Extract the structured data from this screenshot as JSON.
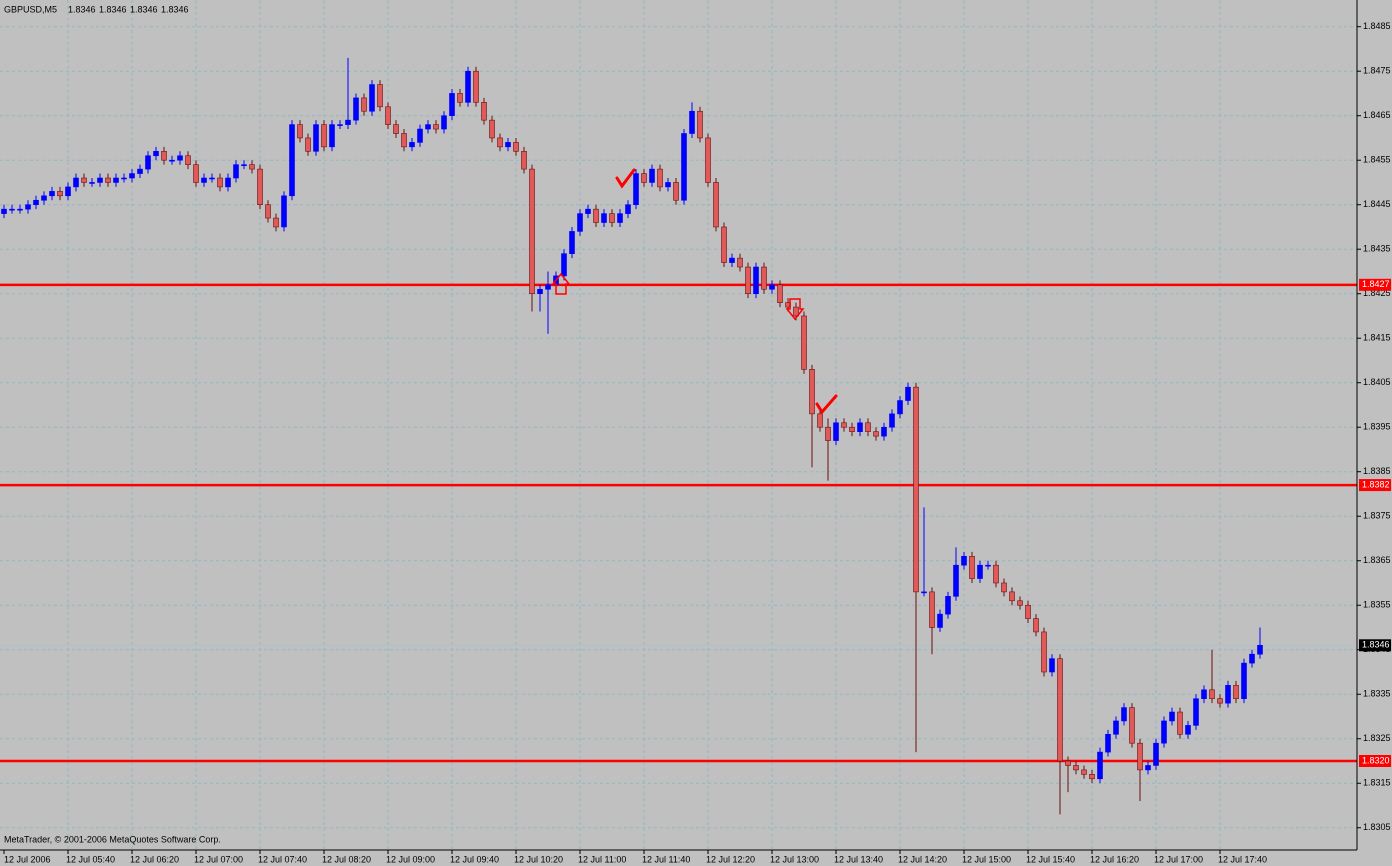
{
  "chart_data": {
    "type": "candlestick",
    "title": "GBPUSD,M5",
    "current_ohlc": [
      1.8346,
      1.8346,
      1.8346,
      1.8346
    ],
    "footer": "MetaTrader, © 2001-2006 MetaQuotes Software Corp.",
    "categories": [
      "12 Jul 2006",
      null,
      null,
      null,
      null,
      null,
      null,
      null,
      "12 Jul 05:40",
      null,
      null,
      null,
      null,
      null,
      null,
      null,
      "12 Jul 06:20",
      null,
      null,
      null,
      null,
      null,
      null,
      null,
      "12 Jul 07:00",
      null,
      null,
      null,
      null,
      null,
      null,
      null,
      "12 Jul 07:40",
      null,
      null,
      null,
      null,
      null,
      null,
      null,
      "12 Jul 08:20",
      null,
      null,
      null,
      null,
      null,
      null,
      null,
      "12 Jul 09:00",
      null,
      null,
      null,
      null,
      null,
      null,
      null,
      "12 Jul 09:40",
      null,
      null,
      null,
      null,
      null,
      null,
      null,
      "12 Jul 10:20",
      null,
      null,
      null,
      null,
      null,
      null,
      null,
      "12 Jul 11:00",
      null,
      null,
      null,
      null,
      null,
      null,
      null,
      "12 Jul 11:40",
      null,
      null,
      null,
      null,
      null,
      null,
      null,
      "12 Jul 12:20",
      null,
      null,
      null,
      null,
      null,
      null,
      null,
      "12 Jul 13:00",
      null,
      null,
      null,
      null,
      null,
      null,
      null,
      "12 Jul 13:40",
      null,
      null,
      null,
      null,
      null,
      null,
      null,
      "12 Jul 14:20",
      null,
      null,
      null,
      null,
      null,
      null,
      null,
      "12 Jul 15:00",
      null,
      null,
      null,
      null,
      null,
      null,
      null,
      "12 Jul 15:40",
      null,
      null,
      null,
      null,
      null,
      null,
      null,
      "12 Jul 16:20",
      null,
      null,
      null,
      null,
      null,
      null,
      null,
      "12 Jul 17:00",
      null,
      null,
      null,
      null,
      null,
      null,
      null,
      "12 Jul 17:40",
      null,
      null,
      null,
      null,
      null
    ],
    "open": [
      1.8443,
      1.8444,
      1.8444,
      1.8444,
      1.8445,
      1.8446,
      1.8447,
      1.8448,
      1.8447,
      1.8449,
      1.8451,
      1.845,
      1.845,
      1.8451,
      1.845,
      1.8451,
      1.8451,
      1.8452,
      1.8453,
      1.8456,
      1.8457,
      1.8455,
      1.8455,
      1.8456,
      1.8454,
      1.845,
      1.8451,
      1.8451,
      1.8449,
      1.8451,
      1.8454,
      1.8454,
      1.8453,
      1.8445,
      1.8442,
      1.844,
      1.8447,
      1.8463,
      1.846,
      1.8457,
      1.8463,
      1.8458,
      1.8463,
      1.8463,
      1.8464,
      1.8469,
      1.8466,
      1.8472,
      1.8467,
      1.8463,
      1.8461,
      1.8458,
      1.8459,
      1.8462,
      1.8463,
      1.8462,
      1.8465,
      1.847,
      1.8468,
      1.8475,
      1.8468,
      1.8464,
      1.846,
      1.8458,
      1.8459,
      1.8457,
      1.8453,
      1.8425,
      1.8426,
      1.8427,
      1.8429,
      1.8434,
      1.8439,
      1.8443,
      1.8444,
      1.8441,
      1.8443,
      1.8441,
      1.8443,
      1.8445,
      1.8452,
      1.845,
      1.8453,
      1.8449,
      1.845,
      1.8446,
      1.8461,
      1.8466,
      1.846,
      1.845,
      1.844,
      1.8432,
      1.8433,
      1.8431,
      1.8425,
      1.8431,
      1.8426,
      1.8427,
      1.8423,
      1.8422,
      1.842,
      1.8408,
      1.8398,
      1.8395,
      1.8392,
      1.8396,
      1.8395,
      1.8394,
      1.8396,
      1.8394,
      1.8393,
      1.8395,
      1.8398,
      1.8401,
      1.8404,
      1.8358,
      1.8358,
      1.835,
      1.8353,
      1.8357,
      1.8364,
      1.8366,
      1.8361,
      1.8364,
      1.8364,
      1.836,
      1.8358,
      1.8356,
      1.8355,
      1.8352,
      1.8349,
      1.834,
      1.8343,
      1.832,
      1.8319,
      1.8318,
      1.8317,
      1.8316,
      1.8322,
      1.8326,
      1.8329,
      1.8332,
      1.8324,
      1.8318,
      1.8319,
      1.8324,
      1.8329,
      1.8331,
      1.8326,
      1.8328,
      1.8334,
      1.8336,
      1.8334,
      1.8333,
      1.8337,
      1.8334,
      1.8342,
      1.8344
    ],
    "high": [
      1.8445,
      1.8445,
      1.8445,
      1.8446,
      1.8447,
      1.8448,
      1.8449,
      1.8449,
      1.845,
      1.8452,
      1.8452,
      1.8451,
      1.8452,
      1.8452,
      1.8452,
      1.8452,
      1.8453,
      1.8454,
      1.8457,
      1.8458,
      1.8458,
      1.8456,
      1.8457,
      1.8457,
      1.8455,
      1.8452,
      1.8452,
      1.8452,
      1.8452,
      1.8455,
      1.8455,
      1.8455,
      1.8454,
      1.8446,
      1.8443,
      1.8448,
      1.8464,
      1.8464,
      1.8461,
      1.8464,
      1.8464,
      1.8464,
      1.8464,
      1.8478,
      1.847,
      1.847,
      1.8473,
      1.8473,
      1.8468,
      1.8464,
      1.8462,
      1.846,
      1.8463,
      1.8464,
      1.8464,
      1.8466,
      1.8471,
      1.8471,
      1.8476,
      1.8476,
      1.8469,
      1.8465,
      1.8461,
      1.846,
      1.846,
      1.8458,
      1.8454,
      1.8427,
      1.843,
      1.843,
      1.8435,
      1.844,
      1.8444,
      1.8445,
      1.8445,
      1.8444,
      1.8444,
      1.8444,
      1.8446,
      1.8453,
      1.8453,
      1.8454,
      1.8454,
      1.8451,
      1.8451,
      1.8462,
      1.8468,
      1.8467,
      1.8461,
      1.8451,
      1.8441,
      1.8434,
      1.8434,
      1.8432,
      1.8432,
      1.8432,
      1.8428,
      1.8428,
      1.8424,
      1.8423,
      1.8421,
      1.8409,
      1.8399,
      1.8397,
      1.8397,
      1.8397,
      1.8396,
      1.8397,
      1.8397,
      1.8395,
      1.8396,
      1.8399,
      1.8402,
      1.8405,
      1.8405,
      1.8377,
      1.8359,
      1.8354,
      1.8358,
      1.8368,
      1.8367,
      1.8367,
      1.8365,
      1.8365,
      1.8365,
      1.8361,
      1.8359,
      1.8357,
      1.8356,
      1.8353,
      1.835,
      1.8344,
      1.8344,
      1.8321,
      1.832,
      1.8319,
      1.8318,
      1.8323,
      1.8327,
      1.833,
      1.8333,
      1.8333,
      1.8325,
      1.832,
      1.8325,
      1.833,
      1.8332,
      1.8332,
      1.8329,
      1.8335,
      1.8337,
      1.8345,
      1.8335,
      1.8338,
      1.8338,
      1.8343,
      1.8345,
      1.835
    ],
    "low": [
      1.8442,
      1.8443,
      1.8443,
      1.8443,
      1.8444,
      1.8445,
      1.8446,
      1.8446,
      1.8446,
      1.8448,
      1.8449,
      1.8449,
      1.8449,
      1.8449,
      1.8449,
      1.845,
      1.845,
      1.8451,
      1.8452,
      1.8455,
      1.8454,
      1.8454,
      1.8454,
      1.8453,
      1.8449,
      1.8449,
      1.845,
      1.8448,
      1.8448,
      1.845,
      1.8453,
      1.8452,
      1.8444,
      1.8441,
      1.8439,
      1.8439,
      1.8446,
      1.8459,
      1.8456,
      1.8456,
      1.8457,
      1.8457,
      1.8462,
      1.8462,
      1.8463,
      1.8465,
      1.8465,
      1.8466,
      1.8462,
      1.846,
      1.8457,
      1.8457,
      1.8458,
      1.8461,
      1.8461,
      1.8461,
      1.8464,
      1.8467,
      1.8467,
      1.8467,
      1.8463,
      1.8459,
      1.8457,
      1.8457,
      1.8456,
      1.8452,
      1.8421,
      1.8421,
      1.8416,
      1.8426,
      1.8428,
      1.8433,
      1.8438,
      1.8442,
      1.844,
      1.844,
      1.844,
      1.844,
      1.8442,
      1.8444,
      1.8449,
      1.8449,
      1.8448,
      1.8448,
      1.8445,
      1.8445,
      1.846,
      1.8459,
      1.8449,
      1.8439,
      1.8431,
      1.8431,
      1.843,
      1.8424,
      1.8424,
      1.8425,
      1.8425,
      1.8422,
      1.8421,
      1.8419,
      1.8407,
      1.8386,
      1.8394,
      1.8383,
      1.8391,
      1.8394,
      1.8393,
      1.8393,
      1.8393,
      1.8392,
      1.8392,
      1.8394,
      1.8397,
      1.84,
      1.8322,
      1.8357,
      1.8344,
      1.8349,
      1.8352,
      1.8356,
      1.8363,
      1.836,
      1.836,
      1.8363,
      1.8359,
      1.8357,
      1.8355,
      1.8354,
      1.8351,
      1.8348,
      1.8339,
      1.8339,
      1.8308,
      1.8313,
      1.8317,
      1.8316,
      1.8315,
      1.8315,
      1.8321,
      1.8325,
      1.8328,
      1.8323,
      1.8311,
      1.8317,
      1.8318,
      1.8323,
      1.8328,
      1.8325,
      1.8325,
      1.8327,
      1.8333,
      1.8333,
      1.8332,
      1.8332,
      1.8333,
      1.8333,
      1.8341,
      1.8343
    ],
    "close": [
      1.8444,
      1.8444,
      1.8444,
      1.8445,
      1.8446,
      1.8447,
      1.8448,
      1.8447,
      1.8449,
      1.8451,
      1.845,
      1.845,
      1.8451,
      1.845,
      1.8451,
      1.8451,
      1.8452,
      1.8453,
      1.8456,
      1.8457,
      1.8455,
      1.8455,
      1.8456,
      1.8454,
      1.845,
      1.8451,
      1.8451,
      1.8449,
      1.8451,
      1.8454,
      1.8454,
      1.8453,
      1.8445,
      1.8442,
      1.844,
      1.8447,
      1.8463,
      1.846,
      1.8457,
      1.8463,
      1.8458,
      1.8463,
      1.8463,
      1.8464,
      1.8469,
      1.8466,
      1.8472,
      1.8467,
      1.8463,
      1.8461,
      1.8458,
      1.8459,
      1.8462,
      1.8463,
      1.8462,
      1.8465,
      1.847,
      1.8468,
      1.8475,
      1.8468,
      1.8464,
      1.846,
      1.8458,
      1.8459,
      1.8457,
      1.8453,
      1.8425,
      1.8426,
      1.8427,
      1.8429,
      1.8434,
      1.8439,
      1.8443,
      1.8444,
      1.8441,
      1.8443,
      1.8441,
      1.8443,
      1.8445,
      1.8452,
      1.845,
      1.8453,
      1.8449,
      1.845,
      1.8446,
      1.8461,
      1.8466,
      1.846,
      1.845,
      1.844,
      1.8432,
      1.8433,
      1.8431,
      1.8425,
      1.8431,
      1.8426,
      1.8427,
      1.8423,
      1.8422,
      1.842,
      1.8408,
      1.8398,
      1.8395,
      1.8392,
      1.8396,
      1.8395,
      1.8394,
      1.8396,
      1.8394,
      1.8393,
      1.8395,
      1.8398,
      1.8401,
      1.8404,
      1.8358,
      1.8358,
      1.835,
      1.8353,
      1.8357,
      1.8364,
      1.8366,
      1.8361,
      1.8364,
      1.8364,
      1.836,
      1.8358,
      1.8356,
      1.8355,
      1.8352,
      1.8349,
      1.834,
      1.8343,
      1.832,
      1.8319,
      1.8318,
      1.8317,
      1.8316,
      1.8322,
      1.8326,
      1.8329,
      1.8332,
      1.8324,
      1.8318,
      1.8319,
      1.8324,
      1.8329,
      1.8331,
      1.8326,
      1.8328,
      1.8334,
      1.8336,
      1.8334,
      1.8333,
      1.8337,
      1.8334,
      1.8342,
      1.8344,
      1.8346
    ],
    "up_color": "#0000ff",
    "down_color": "#e05a5a",
    "ylim": [
      1.83,
      1.8491
    ],
    "yticks": [
      1.8305,
      1.8315,
      1.8325,
      1.8335,
      1.8345,
      1.8355,
      1.8365,
      1.8375,
      1.8385,
      1.8395,
      1.8405,
      1.8415,
      1.8425,
      1.8435,
      1.8445,
      1.8455,
      1.8465,
      1.8475,
      1.8485
    ],
    "levels": [
      {
        "value": 1.8427,
        "label": "1.8427"
      },
      {
        "value": 1.8382,
        "label": "1.8382"
      },
      {
        "value": 1.832,
        "label": "1.8320"
      }
    ],
    "level_color": "#ff0000",
    "current_price": 1.8346,
    "grid": true
  }
}
